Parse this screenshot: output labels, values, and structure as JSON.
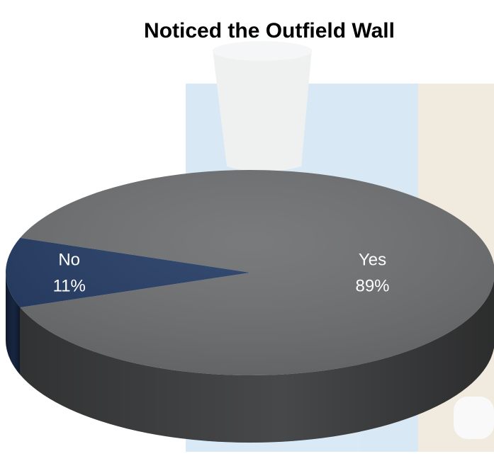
{
  "chart_data": {
    "type": "pie",
    "title": "Noticed the Outfield Wall",
    "categories": [
      "Yes",
      "No"
    ],
    "values": [
      89,
      11
    ],
    "value_labels": [
      "89%",
      "11%"
    ],
    "colors": [
      "#6e6f71",
      "#243b64"
    ]
  }
}
